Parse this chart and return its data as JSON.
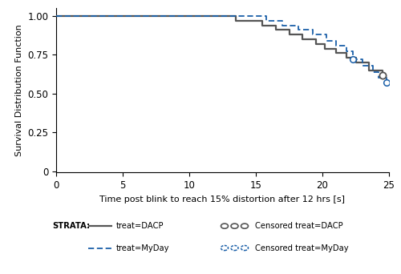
{
  "dacp_times": [
    0,
    11.5,
    13.5,
    15.5,
    16.5,
    17.5,
    18.5,
    19.5,
    20.2,
    21.0,
    21.8,
    22.5,
    23.5,
    24.5
  ],
  "dacp_surv": [
    1.0,
    1.0,
    0.97,
    0.94,
    0.91,
    0.88,
    0.85,
    0.82,
    0.79,
    0.76,
    0.73,
    0.7,
    0.65,
    0.62
  ],
  "dacp_censor_times": [
    24.5
  ],
  "dacp_censor_surv": [
    0.62
  ],
  "myday_times": [
    0,
    14.5,
    15.8,
    17.0,
    18.2,
    19.3,
    20.3,
    21.0,
    21.8,
    22.3,
    23.0,
    23.8,
    24.2,
    24.8
  ],
  "myday_surv": [
    1.0,
    1.0,
    0.97,
    0.94,
    0.91,
    0.88,
    0.84,
    0.81,
    0.77,
    0.72,
    0.68,
    0.64,
    0.6,
    0.57
  ],
  "myday_censor_times": [
    22.3,
    24.8
  ],
  "myday_censor_surv": [
    0.72,
    0.57
  ],
  "dacp_color": "#555555",
  "myday_color": "#1a5fa8",
  "xlabel": "Time post blink to reach 15% distortion after 12 hrs [s]",
  "ylabel": "Survival Distribution Function",
  "xlim": [
    0,
    25
  ],
  "ylim": [
    -0.01,
    1.05
  ],
  "xticks": [
    0,
    5,
    10,
    15,
    20,
    25
  ],
  "ytick_vals": [
    0,
    0.25,
    0.5,
    0.75,
    1.0
  ],
  "ytick_labels": [
    "0",
    "0.25",
    "0.50",
    "0.75",
    "1.00"
  ],
  "legend_strata": "STRATA:",
  "legend_dacp": "treat=DACP",
  "legend_myday": "treat=MyDay",
  "legend_cens_dacp": "Censored treat=DACP",
  "legend_cens_myday": "Censored treat=MyDay",
  "font_size": 8.0,
  "tick_font_size": 8.5
}
